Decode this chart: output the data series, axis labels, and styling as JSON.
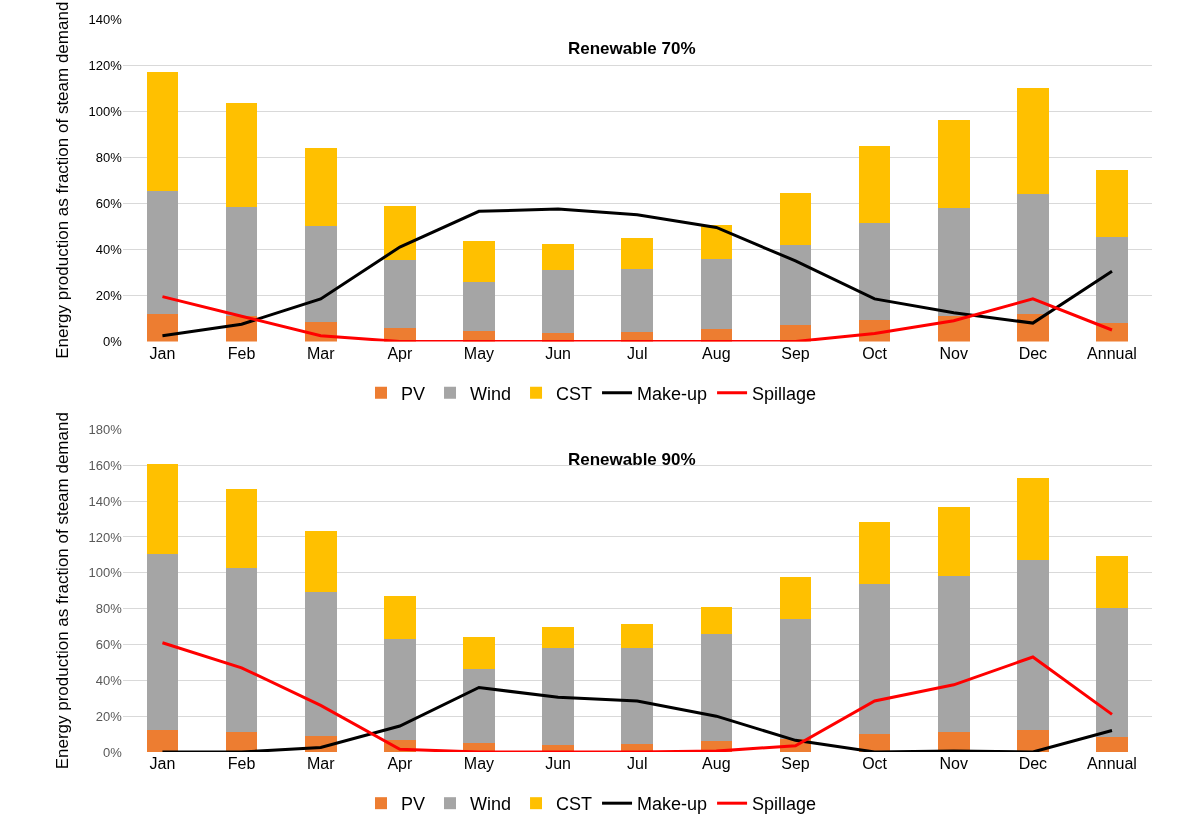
{
  "chart_data": [
    {
      "type": "bar",
      "title": "Renewable 70%",
      "ylabel": "Energy production as fraction of steam demand",
      "stacked": true,
      "grid": "y",
      "legend": "bottom",
      "categories": [
        "Jan",
        "Feb",
        "Mar",
        "Apr",
        "May",
        "Jun",
        "Jul",
        "Aug",
        "Sep",
        "Oct",
        "Nov",
        "Dec",
        "Annual"
      ],
      "ylim": [
        0,
        140
      ],
      "yticks": [
        {
          "value": 0,
          "label": "0%"
        },
        {
          "value": 20,
          "label": "20%"
        },
        {
          "value": 40,
          "label": "40%"
        },
        {
          "value": 60,
          "label": "60%"
        },
        {
          "value": 80,
          "label": "80%"
        },
        {
          "value": 100,
          "label": "100%"
        },
        {
          "value": 120,
          "label": "120%"
        },
        {
          "value": 140,
          "label": "140%"
        }
      ],
      "series": [
        {
          "name": "PV",
          "color": "#ed7d31",
          "values": [
            12,
            11,
            8.5,
            6,
            4.5,
            3.5,
            4,
            5.5,
            7,
            9.5,
            11,
            12,
            8
          ]
        },
        {
          "name": "Wind",
          "color": "#a5a5a5",
          "values": [
            53.5,
            47.5,
            41.5,
            29.5,
            21.5,
            27.5,
            27.5,
            30.5,
            35,
            42,
            47,
            52,
            37.5
          ]
        },
        {
          "name": "CST",
          "color": "#ffc000",
          "values": [
            51.5,
            45,
            34,
            23.5,
            17.5,
            11.5,
            13.5,
            14.5,
            22.5,
            33.5,
            38,
            46,
            29
          ]
        },
        {
          "name": "Make-up",
          "type": "line",
          "color": "#000000",
          "values": [
            2.5,
            7.5,
            18.5,
            41,
            56.5,
            57.5,
            55,
            49.5,
            35,
            18.5,
            12.5,
            8,
            30.5
          ]
        },
        {
          "name": "Spillage",
          "type": "line",
          "color": "#ff0000",
          "values": [
            19.5,
            11,
            2.5,
            0,
            0,
            0,
            0,
            0,
            0,
            3.5,
            9,
            18.5,
            5
          ]
        }
      ]
    },
    {
      "type": "bar",
      "title": "Renewable 90%",
      "ylabel": "Energy production as fraction of steam demand",
      "stacked": true,
      "grid": "y",
      "legend": "bottom",
      "categories": [
        "Jan",
        "Feb",
        "Mar",
        "Apr",
        "May",
        "Jun",
        "Jul",
        "Aug",
        "Sep",
        "Oct",
        "Nov",
        "Dec",
        "Annual"
      ],
      "ylim": [
        0,
        180
      ],
      "yticks": [
        {
          "value": 0,
          "label": "0%"
        },
        {
          "value": 20,
          "label": "20%"
        },
        {
          "value": 40,
          "label": "40%"
        },
        {
          "value": 60,
          "label": "60%"
        },
        {
          "value": 80,
          "label": "80%"
        },
        {
          "value": 100,
          "label": "100%"
        },
        {
          "value": 120,
          "label": "120%"
        },
        {
          "value": 140,
          "label": "140%"
        },
        {
          "value": 160,
          "label": "160%"
        },
        {
          "value": 180,
          "label": "180%"
        }
      ],
      "series": [
        {
          "name": "PV",
          "color": "#ed7d31",
          "values": [
            12.5,
            11,
            9,
            6.5,
            5,
            4,
            4.5,
            6,
            7,
            10,
            11,
            12.5,
            8.5
          ]
        },
        {
          "name": "Wind",
          "color": "#a5a5a5",
          "values": [
            98,
            91.5,
            80.5,
            56.5,
            41.5,
            54,
            53.5,
            60,
            67.5,
            84,
            87.5,
            94.5,
            72
          ]
        },
        {
          "name": "CST",
          "color": "#ffc000",
          "values": [
            50.5,
            44.5,
            34,
            24,
            17.5,
            11.5,
            13.5,
            15,
            23,
            34.5,
            38.5,
            46,
            29
          ]
        },
        {
          "name": "Make-up",
          "type": "line",
          "color": "#000000",
          "values": [
            0,
            0,
            2.5,
            14.5,
            36,
            30.5,
            28.5,
            20,
            6.5,
            0,
            0.5,
            0,
            12
          ]
        },
        {
          "name": "Spillage",
          "type": "line",
          "color": "#ff0000",
          "values": [
            61,
            47,
            26,
            1.5,
            0,
            0,
            0,
            0.5,
            3.5,
            28.5,
            37.5,
            53,
            21
          ]
        }
      ]
    }
  ]
}
